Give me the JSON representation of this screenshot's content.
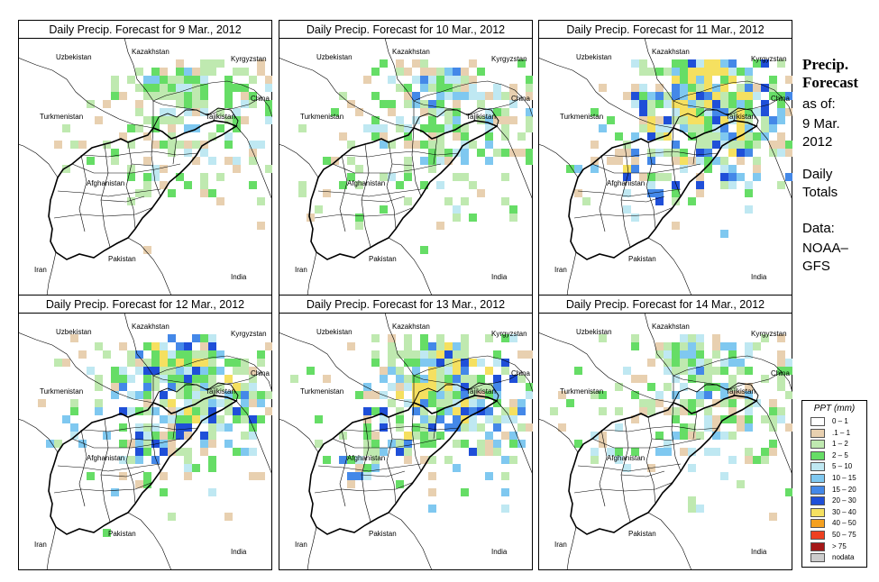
{
  "panels": [
    {
      "title": "Daily Precip. Forecast for  9 Mar., 2012",
      "seed": 11,
      "wet": 0.35
    },
    {
      "title": "Daily Precip. Forecast for  10 Mar., 2012",
      "seed": 23,
      "wet": 0.45
    },
    {
      "title": "Daily Precip. Forecast for  11 Mar., 2012",
      "seed": 37,
      "wet": 0.85
    },
    {
      "title": "Daily Precip. Forecast for  12 Mar., 2012",
      "seed": 41,
      "wet": 0.75
    },
    {
      "title": "Daily Precip. Forecast for  13 Mar., 2012",
      "seed": 53,
      "wet": 0.8
    },
    {
      "title": "Daily Precip. Forecast for  14 Mar., 2012",
      "seed": 67,
      "wet": 0.45
    }
  ],
  "countries": {
    "kazakhstan": "Kazakhstan",
    "uzbekistan": "Uzbekistan",
    "kyrgyzstan": "Kyrgyzstan",
    "china": "China",
    "turkmenistan": "Turkmenistan",
    "tajikistan": "Tajikistan",
    "afghanistan": "Afghanistan",
    "iran": "Iran",
    "pakistan": "Pakistan",
    "india": "India"
  },
  "side": {
    "title_line1": "Precip.",
    "title_line2": "Forecast",
    "asof": "as of:",
    "date1": "9 Mar.",
    "date2": "2012",
    "daily": "Daily",
    "totals": "Totals",
    "data": "Data:",
    "source1": "NOAA–",
    "source2": "GFS"
  },
  "legend": {
    "title": "PPT (mm)",
    "items": [
      {
        "label": "0 – 1",
        "color": "#ffffff"
      },
      {
        "label": ".1 – 1",
        "color": "#e8d0b0"
      },
      {
        "label": "1 – 2",
        "color": "#bfe9b0"
      },
      {
        "label": "2 – 5",
        "color": "#66dd66"
      },
      {
        "label": "5 – 10",
        "color": "#bfe8f2"
      },
      {
        "label": "10 – 15",
        "color": "#7fc8f0"
      },
      {
        "label": "15 – 20",
        "color": "#4488e8"
      },
      {
        "label": "20 – 30",
        "color": "#1f4fd8"
      },
      {
        "label": "30 – 40",
        "color": "#f5e060"
      },
      {
        "label": "40 – 50",
        "color": "#f4a020"
      },
      {
        "label": "50 – 75",
        "color": "#ee4020"
      },
      {
        "label": "> 75",
        "color": "#a51818"
      },
      {
        "label": "nodata",
        "color": "#cccccc"
      }
    ]
  }
}
